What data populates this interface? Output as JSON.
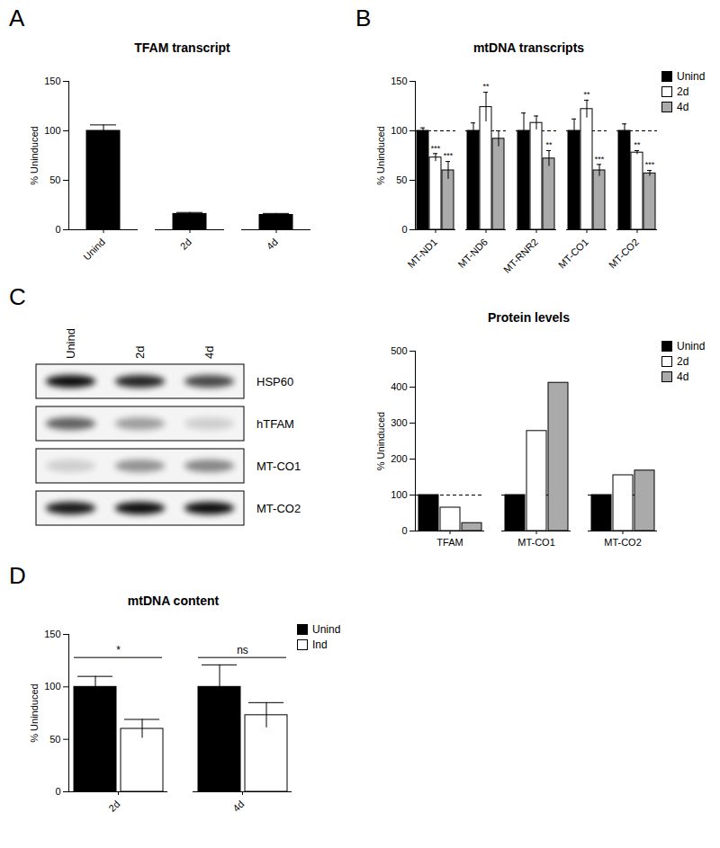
{
  "chart_data": [
    {
      "panel": "A",
      "type": "bar",
      "title": "TFAM transcript",
      "ylabel": "% Uninduced",
      "categories": [
        "Unind",
        "2d",
        "4d"
      ],
      "series": [
        {
          "name": "Unind",
          "color": "#000000",
          "values": [
            100,
            16,
            15
          ],
          "errors": [
            6,
            1.5,
            1.5
          ]
        }
      ],
      "ylim": [
        0,
        150
      ],
      "yticks": [
        0,
        50,
        100,
        150
      ]
    },
    {
      "panel": "B",
      "type": "bar",
      "title": "mtDNA transcripts",
      "ylabel": "% Uninduced",
      "categories": [
        "MT-ND1",
        "MT-ND6",
        "MT-RNR2",
        "MT-CO1",
        "MT-CO2"
      ],
      "series": [
        {
          "name": "Unind",
          "color": "#000000",
          "values": [
            100,
            100,
            100,
            100,
            100
          ],
          "errors": [
            3,
            8,
            18,
            12,
            7
          ]
        },
        {
          "name": "2d",
          "color": "#ffffff",
          "values": [
            73,
            124,
            108,
            122,
            78
          ],
          "errors": [
            4,
            15,
            7,
            9,
            2
          ],
          "annotations": [
            "***",
            "**",
            null,
            "**",
            "**"
          ]
        },
        {
          "name": "4d",
          "color": "#aaaaaa",
          "values": [
            60,
            92,
            72,
            60,
            57
          ],
          "errors": [
            9,
            8,
            8,
            6,
            3
          ],
          "annotations": [
            "***",
            null,
            "**",
            "***",
            "***"
          ]
        }
      ],
      "reference_line": 100,
      "legend": "top-right",
      "ylim": [
        0,
        150
      ],
      "yticks": [
        0,
        50,
        100,
        150
      ]
    },
    {
      "type": "bar",
      "title": "Protein levels",
      "ylabel": "% Uninduced",
      "categories": [
        "TFAM",
        "MT-CO1",
        "MT-CO2"
      ],
      "series": [
        {
          "name": "Unind",
          "color": "#000000",
          "values": [
            100,
            100,
            100
          ]
        },
        {
          "name": "2d",
          "color": "#ffffff",
          "values": [
            65,
            278,
            155
          ]
        },
        {
          "name": "4d",
          "color": "#aaaaaa",
          "values": [
            22,
            412,
            168
          ]
        }
      ],
      "reference_line": 100,
      "legend": "top-right",
      "ylim": [
        0,
        500
      ],
      "yticks": [
        0,
        100,
        200,
        300,
        400,
        500
      ]
    },
    {
      "panel": "D",
      "type": "bar",
      "title": "mtDNA content",
      "ylabel": "% Uninduced",
      "categories": [
        "2d",
        "4d"
      ],
      "series": [
        {
          "name": "Unind",
          "color": "#000000",
          "values": [
            100,
            100
          ],
          "errors": [
            10,
            21
          ]
        },
        {
          "name": "Ind",
          "color": "#ffffff",
          "values": [
            60,
            73
          ],
          "errors": [
            9,
            12
          ]
        }
      ],
      "brackets": [
        {
          "category": "2d",
          "value": 128,
          "label": "*"
        },
        {
          "category": "4d",
          "value": 128,
          "label": "ns"
        }
      ],
      "legend": "top-right",
      "ylim": [
        0,
        150
      ],
      "yticks": [
        0,
        50,
        100,
        150
      ]
    }
  ],
  "blot": {
    "panel": "C",
    "lanes": [
      "Unind",
      "2d",
      "4d"
    ],
    "rows": [
      {
        "name": "HSP60",
        "intensity": [
          0.95,
          0.85,
          0.7
        ]
      },
      {
        "name": "hTFAM",
        "intensity": [
          0.6,
          0.35,
          0.15
        ]
      },
      {
        "name": "MT-CO1",
        "intensity": [
          0.15,
          0.4,
          0.45
        ]
      },
      {
        "name": "MT-CO2",
        "intensity": [
          0.9,
          0.95,
          0.95
        ]
      }
    ]
  }
}
